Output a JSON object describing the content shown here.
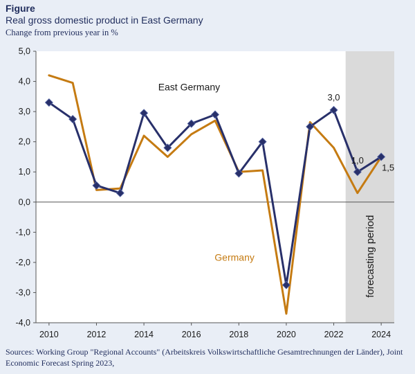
{
  "header": {
    "figure_label": "Figure",
    "title": "Real gross domestic product in East Germany",
    "subtitle": "Change from previous year in %"
  },
  "source": "Sources: Working Group \"Regional Accounts\" (Arbeitskreis Volkswirtschaftliche Gesamtrechnungen der Länder), Joint Economic Forecast Spring 2023,",
  "colors": {
    "east_germany": "#28306a",
    "germany": "#c57b12",
    "forecast_shade": "#dadada",
    "plot_bg": "#ffffff",
    "page_bg": "#e9eef6"
  },
  "chart_data": {
    "type": "line",
    "x": [
      2010,
      2011,
      2012,
      2013,
      2014,
      2015,
      2016,
      2017,
      2018,
      2019,
      2020,
      2021,
      2022,
      2023,
      2024
    ],
    "xlim": [
      2009.45,
      2024.55
    ],
    "ylim": [
      -4,
      5
    ],
    "x_ticks": [
      2010,
      2012,
      2014,
      2016,
      2018,
      2020,
      2022,
      2024
    ],
    "x_tick_labels": [
      "2010",
      "2012",
      "2014",
      "2016",
      "2018",
      "2020",
      "2022",
      "2024"
    ],
    "y_ticks": [
      -4,
      -3,
      -2,
      -1,
      0,
      1,
      2,
      3,
      4,
      5
    ],
    "y_tick_labels": [
      "-4,0",
      "-3,0",
      "-2,0",
      "-1,0",
      "0,0",
      "1,0",
      "2,0",
      "3,0",
      "4,0",
      "5,0"
    ],
    "forecast_region": {
      "from": 2022.5,
      "to": 2024.55,
      "label": "forecasting period"
    },
    "series": [
      {
        "name": "East Germany",
        "values": [
          3.3,
          2.75,
          0.55,
          0.3,
          2.95,
          1.8,
          2.6,
          2.9,
          0.95,
          2.0,
          -2.75,
          2.5,
          3.05,
          1.0,
          1.5
        ],
        "markers": true
      },
      {
        "name": "Germany",
        "values": [
          4.2,
          3.95,
          0.4,
          0.45,
          2.2,
          1.5,
          2.25,
          2.7,
          1.0,
          1.05,
          -3.7,
          2.65,
          1.8,
          0.3,
          1.5
        ],
        "markers": false
      }
    ],
    "annotations": [
      {
        "text": "3,0",
        "x": 2022,
        "y": 3.05
      },
      {
        "text": "1,0",
        "x": 2023,
        "y": 1.0
      },
      {
        "text": "1,5",
        "x": 2024,
        "y": 1.5
      }
    ],
    "grid": false
  }
}
